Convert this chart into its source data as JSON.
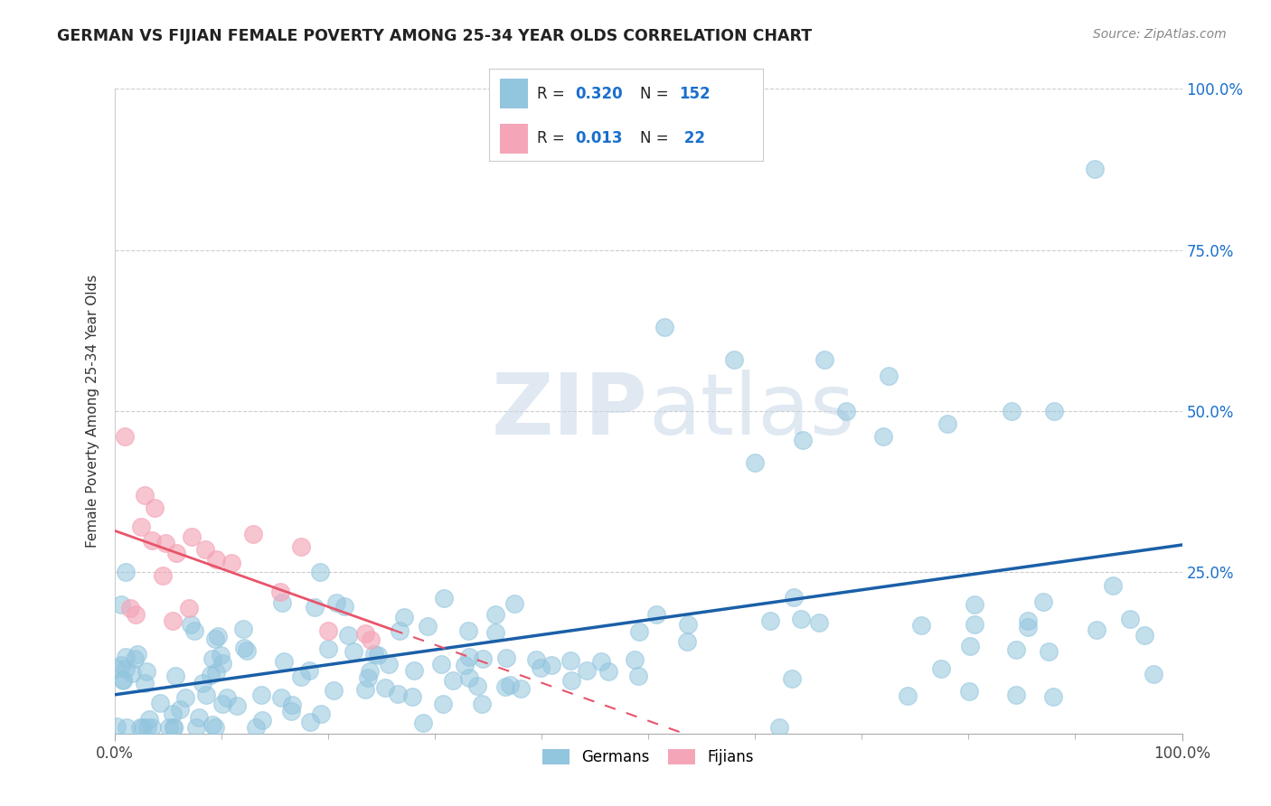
{
  "title": "GERMAN VS FIJIAN FEMALE POVERTY AMONG 25-34 YEAR OLDS CORRELATION CHART",
  "source": "Source: ZipAtlas.com",
  "ylabel": "Female Poverty Among 25-34 Year Olds",
  "xlim": [
    0,
    1
  ],
  "ylim": [
    0,
    1
  ],
  "german_R": 0.32,
  "german_N": 152,
  "fijian_R": 0.013,
  "fijian_N": 22,
  "german_color": "#92c5de",
  "fijian_color": "#f4a6b8",
  "german_line_color": "#1a5fa8",
  "fijian_line_color": "#e8546a",
  "legend_label_german": "Germans",
  "legend_label_fijian": "Fijians",
  "watermark_zip": "ZIP",
  "watermark_atlas": "atlas",
  "background_color": "#ffffff",
  "grid_color": "#cccccc",
  "title_color": "#333333",
  "r_label_color": "#1a6fcc",
  "n_label_color": "#1a6fcc"
}
